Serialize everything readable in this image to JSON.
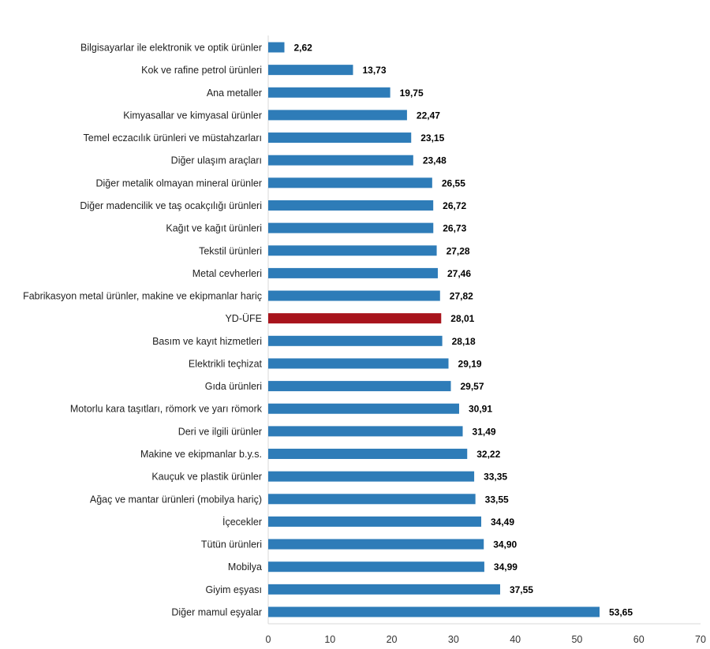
{
  "chart_data": {
    "type": "bar",
    "orientation": "horizontal",
    "title": "",
    "xlabel": "",
    "ylabel": "",
    "xlim": [
      0,
      70
    ],
    "xticks": [
      0,
      10,
      20,
      30,
      40,
      50,
      60,
      70
    ],
    "grid": false,
    "legend": "none",
    "colors": {
      "default": "#2e7cb8",
      "highlight": "#a8141c"
    },
    "highlight_category": "YD-ÜFE",
    "categories": [
      "Bilgisayarlar ile elektronik ve optik ürünler",
      "Kok ve rafine petrol ürünleri",
      "Ana metaller",
      "Kimyasallar ve kimyasal ürünler",
      "Temel eczacılık ürünleri ve müstahzarları",
      "Diğer ulaşım araçları",
      "Diğer metalik olmayan mineral ürünler",
      "Diğer madencilik ve taş ocakçılığı ürünleri",
      "Kağıt ve kağıt ürünleri",
      "Tekstil ürünleri",
      "Metal cevherleri",
      "Fabrikasyon metal ürünler, makine ve ekipmanlar hariç",
      "YD-ÜFE",
      "Basım ve kayıt hizmetleri",
      "Elektrikli teçhizat",
      "Gıda ürünleri",
      "Motorlu kara taşıtları, römork ve yarı römork",
      "Deri ve ilgili ürünler",
      "Makine ve ekipmanlar b.y.s.",
      "Kauçuk ve plastik ürünler",
      "Ağaç ve mantar ürünleri (mobilya hariç)",
      "İçecekler",
      "Tütün ürünleri",
      "Mobilya",
      "Giyim eşyası",
      "Diğer mamul eşyalar"
    ],
    "values": [
      2.62,
      13.73,
      19.75,
      22.47,
      23.15,
      23.48,
      26.55,
      26.72,
      26.73,
      27.28,
      27.46,
      27.82,
      28.01,
      28.18,
      29.19,
      29.57,
      30.91,
      31.49,
      32.22,
      33.35,
      33.55,
      34.49,
      34.9,
      34.99,
      37.55,
      53.65
    ],
    "value_labels": [
      "2,62",
      "13,73",
      "19,75",
      "22,47",
      "23,15",
      "23,48",
      "26,55",
      "26,72",
      "26,73",
      "27,28",
      "27,46",
      "27,82",
      "28,01",
      "28,18",
      "29,19",
      "29,57",
      "30,91",
      "31,49",
      "32,22",
      "33,35",
      "33,55",
      "34,49",
      "34,90",
      "34,99",
      "37,55",
      "53,65"
    ]
  }
}
